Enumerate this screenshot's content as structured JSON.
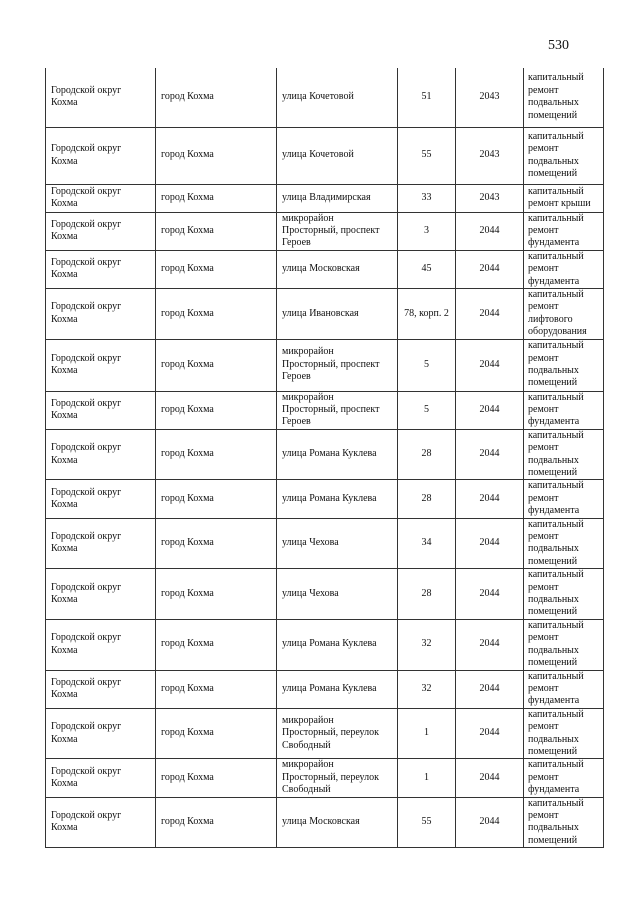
{
  "page_number": "530",
  "rows": [
    [
      "Городской округ Кохма",
      "город Кохма",
      "улица Кочетовой",
      "51",
      "2043",
      "капитальный ремонт подвальных помещений"
    ],
    [
      "Городской округ Кохма",
      "город Кохма",
      "улица Кочетовой",
      "55",
      "2043",
      "капитальный ремонт подвальных помещений"
    ],
    [
      "Городской округ Кохма",
      "город Кохма",
      "улица Владимирская",
      "33",
      "2043",
      "капитальный ремонт крыши"
    ],
    [
      "Городской округ Кохма",
      "город Кохма",
      "микрорайон Просторный, проспект Героев",
      "3",
      "2044",
      "капитальный ремонт фундамента"
    ],
    [
      "Городской округ Кохма",
      "город Кохма",
      "улица Московская",
      "45",
      "2044",
      "капитальный ремонт фундамента"
    ],
    [
      "Городской округ Кохма",
      "город Кохма",
      "улица Ивановская",
      "78, корп. 2",
      "2044",
      "капитальный ремонт лифтового оборудования"
    ],
    [
      "Городской округ Кохма",
      "город Кохма",
      "микрорайон Просторный, проспект Героев",
      "5",
      "2044",
      "капитальный ремонт подвальных помещений"
    ],
    [
      "Городской округ Кохма",
      "город Кохма",
      "микрорайон Просторный, проспект Героев",
      "5",
      "2044",
      "капитальный ремонт фундамента"
    ],
    [
      "Городской округ Кохма",
      "город Кохма",
      "улица Романа Куклева",
      "28",
      "2044",
      "капитальный ремонт подвальных помещений"
    ],
    [
      "Городской округ Кохма",
      "город Кохма",
      "улица Романа Куклева",
      "28",
      "2044",
      "капитальный ремонт фундамента"
    ],
    [
      "Городской округ Кохма",
      "город Кохма",
      "улица Чехова",
      "34",
      "2044",
      "капитальный ремонт подвальных помещений"
    ],
    [
      "Городской округ Кохма",
      "город Кохма",
      "улица Чехова",
      "28",
      "2044",
      "капитальный ремонт подвальных помещений"
    ],
    [
      "Городской округ Кохма",
      "город Кохма",
      "улица Романа Куклева",
      "32",
      "2044",
      "капитальный ремонт подвальных помещений"
    ],
    [
      "Городской округ Кохма",
      "город Кохма",
      "улица Романа Куклева",
      "32",
      "2044",
      "капитальный ремонт фундамента"
    ],
    [
      "Городской округ Кохма",
      "город Кохма",
      "микрорайон Просторный, переулок Свободный",
      "1",
      "2044",
      "капитальный ремонт подвальных помещений"
    ],
    [
      "Городской округ Кохма",
      "город Кохма",
      "микрорайон Просторный, переулок Свободный",
      "1",
      "2044",
      "капитальный ремонт фундамента"
    ],
    [
      "Городской округ Кохма",
      "город Кохма",
      "улица Московская",
      "55",
      "2044",
      "капитальный ремонт подвальных помещений"
    ]
  ]
}
